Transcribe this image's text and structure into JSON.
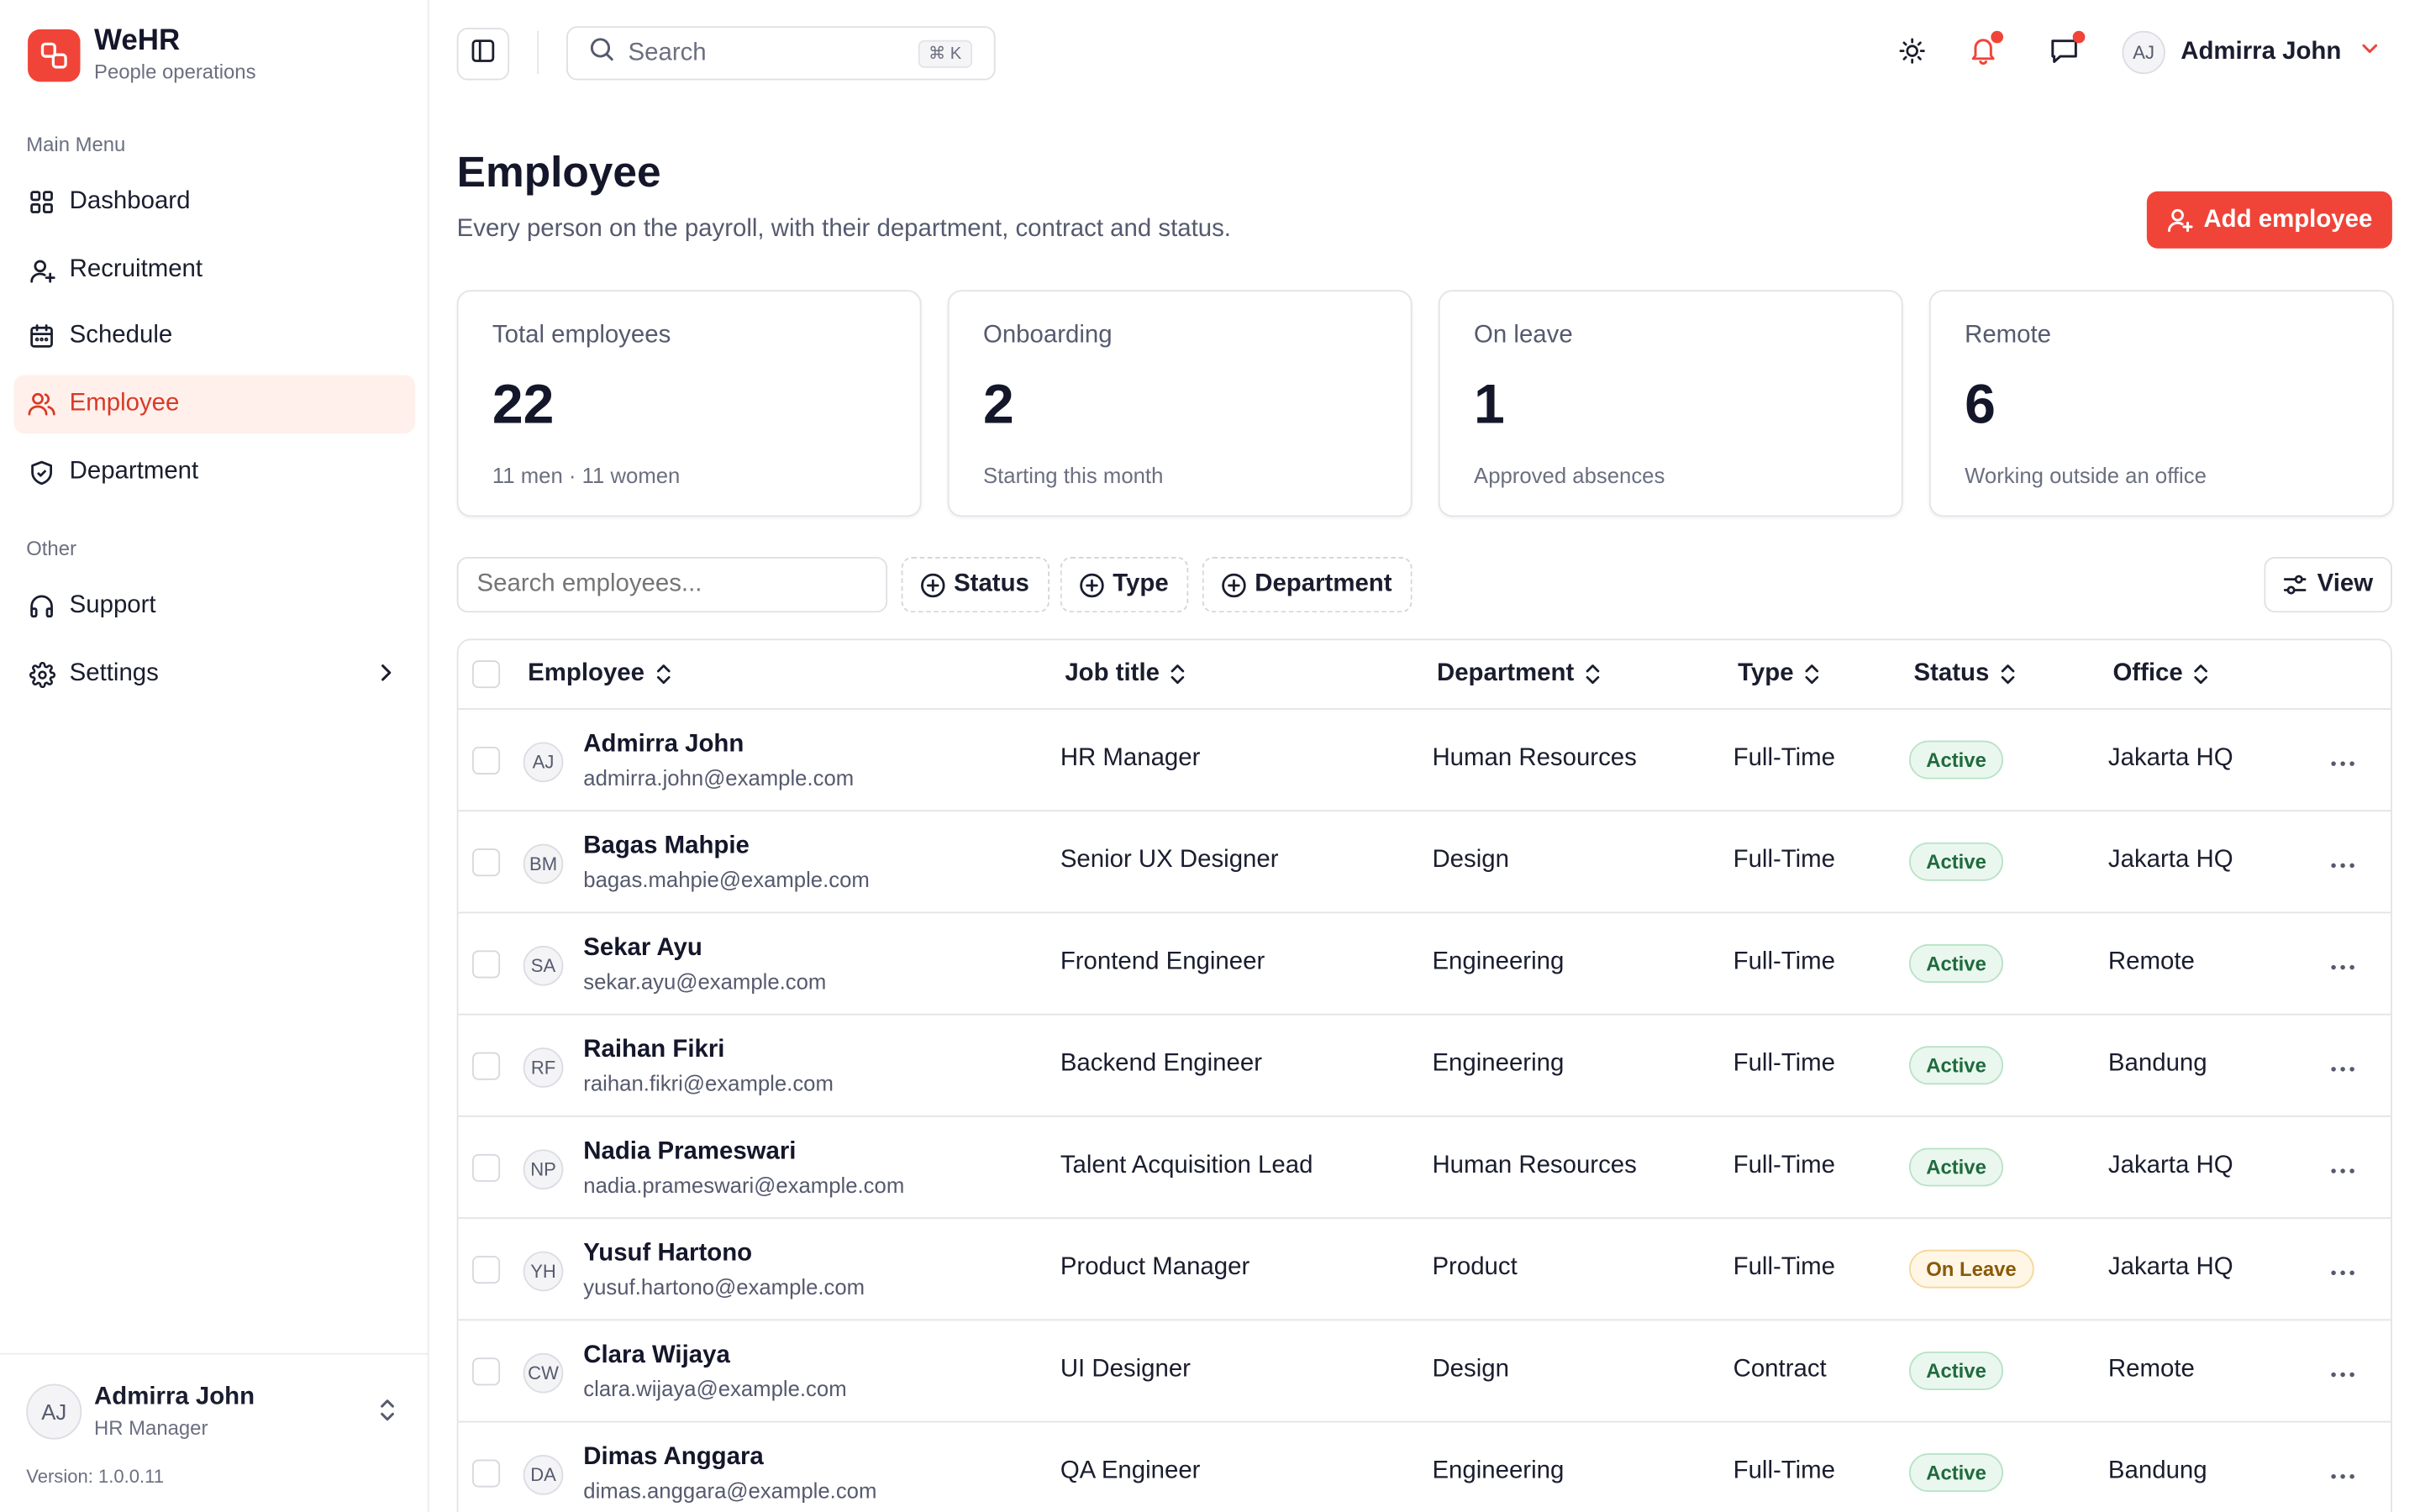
{
  "brand": {
    "name": "WeHR",
    "subtitle": "People operations"
  },
  "sidebar": {
    "main_label": "Main Menu",
    "main_items": [
      {
        "label": "Dashboard",
        "icon": "grid-icon"
      },
      {
        "label": "Recruitment",
        "icon": "user-plus-icon"
      },
      {
        "label": "Schedule",
        "icon": "calendar-icon"
      },
      {
        "label": "Employee",
        "icon": "users-icon",
        "active": true
      },
      {
        "label": "Department",
        "icon": "shield-icon"
      }
    ],
    "other_label": "Other",
    "other_items": [
      {
        "label": "Support",
        "icon": "headphones-icon"
      },
      {
        "label": "Settings",
        "icon": "gear-icon"
      }
    ],
    "user": {
      "initials": "AJ",
      "name": "Admirra John",
      "role": "HR Manager"
    },
    "version": "Version: 1.0.0.11"
  },
  "header": {
    "search_placeholder": "Search",
    "shortcut": "⌘ K",
    "user_initials": "AJ",
    "user_name": "Admirra John"
  },
  "page": {
    "title": "Employee",
    "subtitle": "Every person on the payroll, with their department, contract and status.",
    "add_button": "Add employee"
  },
  "stats": [
    {
      "label": "Total employees",
      "value": "22",
      "note": "11 men · 11 women"
    },
    {
      "label": "Onboarding",
      "value": "2",
      "note": "Starting this month"
    },
    {
      "label": "On leave",
      "value": "1",
      "note": "Approved absences"
    },
    {
      "label": "Remote",
      "value": "6",
      "note": "Working outside an office"
    }
  ],
  "toolbar": {
    "filter_placeholder": "Search employees...",
    "status_chip": "Status",
    "type_chip": "Type",
    "department_chip": "Department",
    "view_button": "View"
  },
  "table": {
    "columns": [
      "Employee",
      "Job title",
      "Department",
      "Type",
      "Status",
      "Office"
    ],
    "rows": [
      {
        "initials": "AJ",
        "name": "Admirra John",
        "email": "admirra.john@example.com",
        "job": "HR Manager",
        "department": "Human Resources",
        "type": "Full-Time",
        "status": "Active",
        "office": "Jakarta HQ"
      },
      {
        "initials": "BM",
        "name": "Bagas Mahpie",
        "email": "bagas.mahpie@example.com",
        "job": "Senior UX Designer",
        "department": "Design",
        "type": "Full-Time",
        "status": "Active",
        "office": "Jakarta HQ"
      },
      {
        "initials": "SA",
        "name": "Sekar Ayu",
        "email": "sekar.ayu@example.com",
        "job": "Frontend Engineer",
        "department": "Engineering",
        "type": "Full-Time",
        "status": "Active",
        "office": "Remote"
      },
      {
        "initials": "RF",
        "name": "Raihan Fikri",
        "email": "raihan.fikri@example.com",
        "job": "Backend Engineer",
        "department": "Engineering",
        "type": "Full-Time",
        "status": "Active",
        "office": "Bandung"
      },
      {
        "initials": "NP",
        "name": "Nadia Prameswari",
        "email": "nadia.prameswari@example.com",
        "job": "Talent Acquisition Lead",
        "department": "Human Resources",
        "type": "Full-Time",
        "status": "Active",
        "office": "Jakarta HQ"
      },
      {
        "initials": "YH",
        "name": "Yusuf Hartono",
        "email": "yusuf.hartono@example.com",
        "job": "Product Manager",
        "department": "Product",
        "type": "Full-Time",
        "status": "On Leave",
        "office": "Jakarta HQ"
      },
      {
        "initials": "CW",
        "name": "Clara Wijaya",
        "email": "clara.wijaya@example.com",
        "job": "UI Designer",
        "department": "Design",
        "type": "Contract",
        "status": "Active",
        "office": "Remote"
      },
      {
        "initials": "DA",
        "name": "Dimas Anggara",
        "email": "dimas.anggara@example.com",
        "job": "QA Engineer",
        "department": "Engineering",
        "type": "Full-Time",
        "status": "Active",
        "office": "Bandung"
      }
    ]
  },
  "colors": {
    "accent": "#f04438",
    "active_nav_bg": "#fff0ec",
    "active_badge": "#1f6b3d",
    "leave_badge": "#8a5a08"
  }
}
